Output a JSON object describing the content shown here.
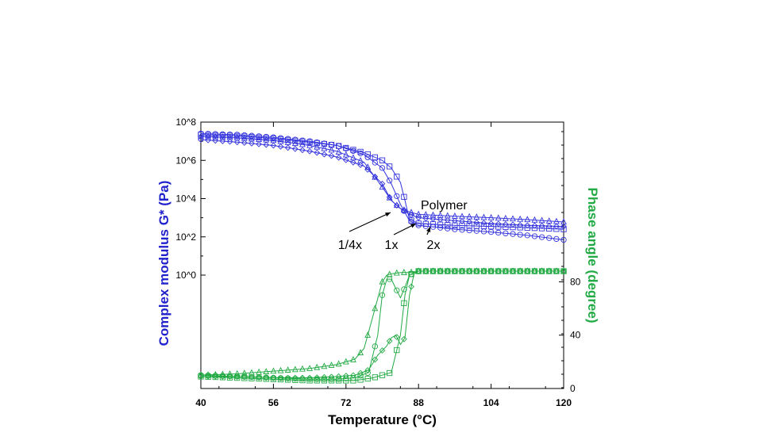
{
  "chart_data": {
    "type": "line",
    "title": "",
    "xlabel": "Temperature (°C)",
    "ylabel_left": "Complex modulus G* (Pa)",
    "ylabel_right": "Phase angle (degree)",
    "xlim": [
      40,
      120
    ],
    "x_ticks": [
      "40",
      "56",
      "72",
      "88",
      "104",
      "120"
    ],
    "y_left_scale": "log",
    "y_left_ticks": [
      "10^8",
      "10^6",
      "10^4",
      "10^2",
      "10^0"
    ],
    "y_right_ticks": [
      "0",
      "40",
      "80"
    ],
    "colors": {
      "modulus": "#3333dd",
      "phase": "#22aa44",
      "left_title": "#2222cc",
      "right_title": "#22aa44"
    },
    "annotations": [
      {
        "text": "Polymer"
      },
      {
        "text": "1/4x"
      },
      {
        "text": "1x"
      },
      {
        "text": "2x"
      }
    ],
    "series": [
      {
        "axis": "left",
        "marker": "circle",
        "x": [
          40,
          48,
          56,
          64,
          70,
          76,
          80,
          82,
          84,
          86,
          88,
          96,
          104,
          112,
          120
        ],
        "y": [
          25000000.0,
          22000000.0,
          16000000.0,
          10000000.0,
          6000000.0,
          2000000.0,
          400000.0,
          60000.0,
          5000.0,
          700.0,
          400.0,
          250.0,
          180.0,
          120.0,
          70.0
        ]
      },
      {
        "axis": "left",
        "marker": "square",
        "x": [
          40,
          48,
          56,
          64,
          70,
          76,
          80,
          82,
          84,
          85,
          86,
          88,
          96,
          104,
          112,
          120
        ],
        "y": [
          22000000.0,
          19000000.0,
          14000000.0,
          9000000.0,
          6000000.0,
          2500000.0,
          1000000.0,
          400000.0,
          70000.0,
          8000.0,
          800.0,
          500.0,
          400.0,
          350.0,
          300.0,
          250.0
        ]
      },
      {
        "axis": "left",
        "marker": "triangle",
        "x": [
          40,
          48,
          56,
          64,
          70,
          76,
          80,
          82,
          84,
          86,
          88,
          96,
          104,
          112,
          120
        ],
        "y": [
          18000000.0,
          15000000.0,
          11000000.0,
          6000000.0,
          3000000.0,
          800000.0,
          40000.0,
          8000.0,
          3000.0,
          2000.0,
          1500.0,
          1200.0,
          1000.0,
          800.0,
          600.0
        ]
      },
      {
        "axis": "left",
        "marker": "diamond",
        "x": [
          40,
          48,
          56,
          64,
          70,
          76,
          80,
          82,
          84,
          86,
          88,
          96,
          104,
          112,
          120
        ],
        "y": [
          12000000.0,
          9000000.0,
          6000000.0,
          3000000.0,
          1500000.0,
          500000.0,
          60000.0,
          8000.0,
          3000.0,
          1500.0,
          1000.0,
          700.0,
          500.0,
          400.0,
          350.0
        ]
      },
      {
        "axis": "right",
        "marker": "circle",
        "x": [
          40,
          48,
          56,
          64,
          70,
          74,
          77,
          79,
          80,
          81,
          82,
          83,
          84,
          85,
          86,
          87,
          88,
          96,
          104,
          112,
          120
        ],
        "y": [
          10,
          9,
          8,
          7,
          7,
          8,
          12,
          40,
          70,
          82,
          82,
          75,
          68,
          76,
          85,
          87,
          88,
          88,
          88,
          88,
          88
        ]
      },
      {
        "axis": "right",
        "marker": "square",
        "x": [
          40,
          48,
          56,
          64,
          70,
          74,
          78,
          80,
          82,
          84,
          85,
          86,
          87,
          88,
          96,
          104,
          112,
          120
        ],
        "y": [
          9,
          8,
          7,
          6,
          6,
          6,
          8,
          10,
          12,
          40,
          70,
          85,
          87,
          88,
          88,
          88,
          88,
          88
        ]
      },
      {
        "axis": "right",
        "marker": "triangle",
        "x": [
          40,
          48,
          56,
          64,
          70,
          74,
          76,
          78,
          80,
          81,
          82,
          84,
          86,
          88,
          96,
          104,
          112,
          120
        ],
        "y": [
          10,
          11,
          13,
          15,
          18,
          22,
          30,
          55,
          80,
          85,
          86,
          87,
          87,
          88,
          88,
          88,
          88,
          88
        ]
      },
      {
        "axis": "right",
        "marker": "diamond",
        "x": [
          40,
          48,
          56,
          64,
          70,
          74,
          77,
          79,
          81,
          82,
          83,
          84,
          85,
          86,
          87,
          88,
          96,
          104,
          112,
          120
        ],
        "y": [
          9,
          9,
          8,
          8,
          9,
          10,
          14,
          25,
          32,
          38,
          40,
          33,
          38,
          70,
          86,
          88,
          88,
          88,
          88,
          88
        ]
      }
    ]
  }
}
